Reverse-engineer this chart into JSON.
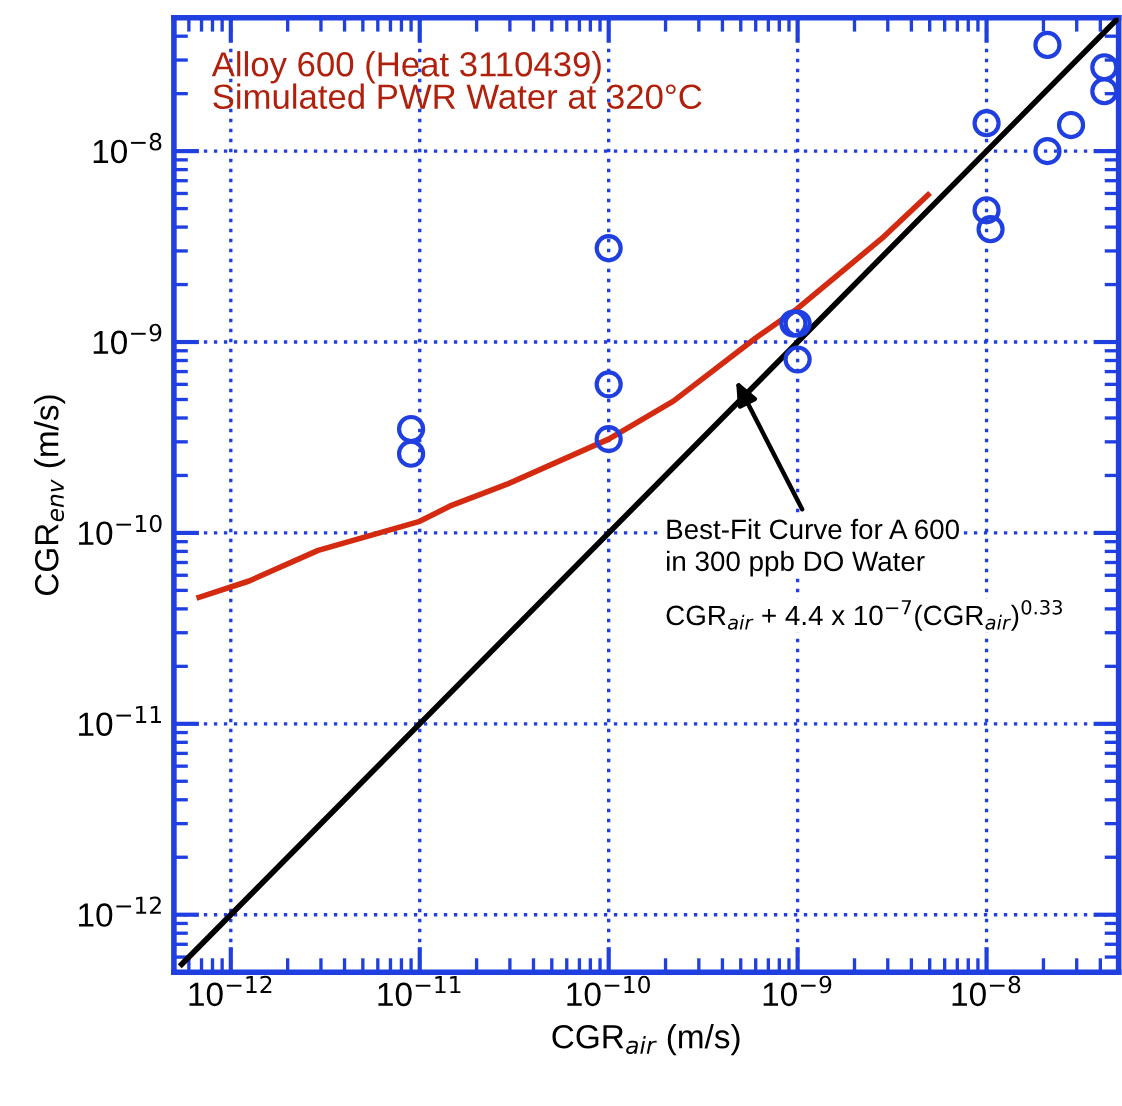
{
  "chart_data": {
    "type": "scatter",
    "title": "Alloy 600 (Heat 3110439)\nSimulated PWR Water at 320°C",
    "xlabel": "CGR$_{air}$ (m/s)",
    "ylabel": "CGR$_{env}$ (m/s)",
    "log": "xy",
    "grid": true,
    "line_style": "solid",
    "xlim": [
      5e-13,
      5e-08
    ],
    "ylim": [
      5e-13,
      5e-08
    ],
    "xticks": [
      {
        "value": 1e-12,
        "label": "10$^{−12}$"
      },
      {
        "value": 1e-11,
        "label": "10$^{−11}$"
      },
      {
        "value": 1e-10,
        "label": "10$^{−10}$"
      },
      {
        "value": 1e-09,
        "label": "10$^{−9}$"
      },
      {
        "value": 1e-08,
        "label": "10$^{−8}$"
      }
    ],
    "yticks": [
      {
        "value": 1e-12,
        "label": "10$^{−12}$"
      },
      {
        "value": 1e-11,
        "label": "10$^{−11}$"
      },
      {
        "value": 1e-10,
        "label": "10$^{−10}$"
      },
      {
        "value": 1e-09,
        "label": "10$^{−9}$"
      },
      {
        "value": 1e-08,
        "label": "10$^{−8}$"
      }
    ],
    "series": [
      {
        "marker": "circle",
        "color": "#1f3fe0",
        "x": [
          9e-12,
          9e-12,
          1e-10,
          1e-10,
          1e-10,
          9.5e-10,
          1e-09,
          1e-09,
          1e-08,
          1e-08,
          1.05e-08,
          2.1e-08,
          2.1e-08,
          2.8e-08,
          4.2e-08,
          4.2e-08
        ],
        "values": [
          3.5e-10,
          2.6e-10,
          3.1e-09,
          6e-10,
          3.1e-10,
          1.25e-09,
          1.25e-09,
          8.1e-10,
          1.4e-08,
          4.9e-09,
          3.9e-09,
          3.6e-08,
          1e-08,
          1.37e-08,
          2.75e-08,
          2.06e-08
        ]
      },
      {
        "type": "line",
        "color": "#d42a10",
        "x": [
          6.8e-13,
          1.25e-12,
          2.9e-12,
          1e-11,
          1.44e-11,
          2.9e-11,
          1e-10,
          2.2e-10,
          6e-10,
          1e-09,
          2.8e-09,
          4.9e-09
        ],
        "values": [
          4.6e-11,
          5.6e-11,
          8.1e-11,
          1.15e-10,
          1.38e-10,
          1.8e-10,
          3.1e-10,
          4.9e-10,
          1.05e-09,
          1.5e-09,
          3.5e-09,
          5.9e-09
        ]
      },
      {
        "type": "line",
        "color": "#000000",
        "x": [
          5.5e-13,
          5e-08
        ],
        "values": [
          5.5e-13,
          5e-08
        ]
      }
    ],
    "annotations": [
      "Best-Fit Curve for A 600\nin 300 ppb DO Water",
      "CGR$_{air}$ + 4.4 x 10$^{−7}$(CGR$_{air}$)$^{0.33}$"
    ]
  }
}
